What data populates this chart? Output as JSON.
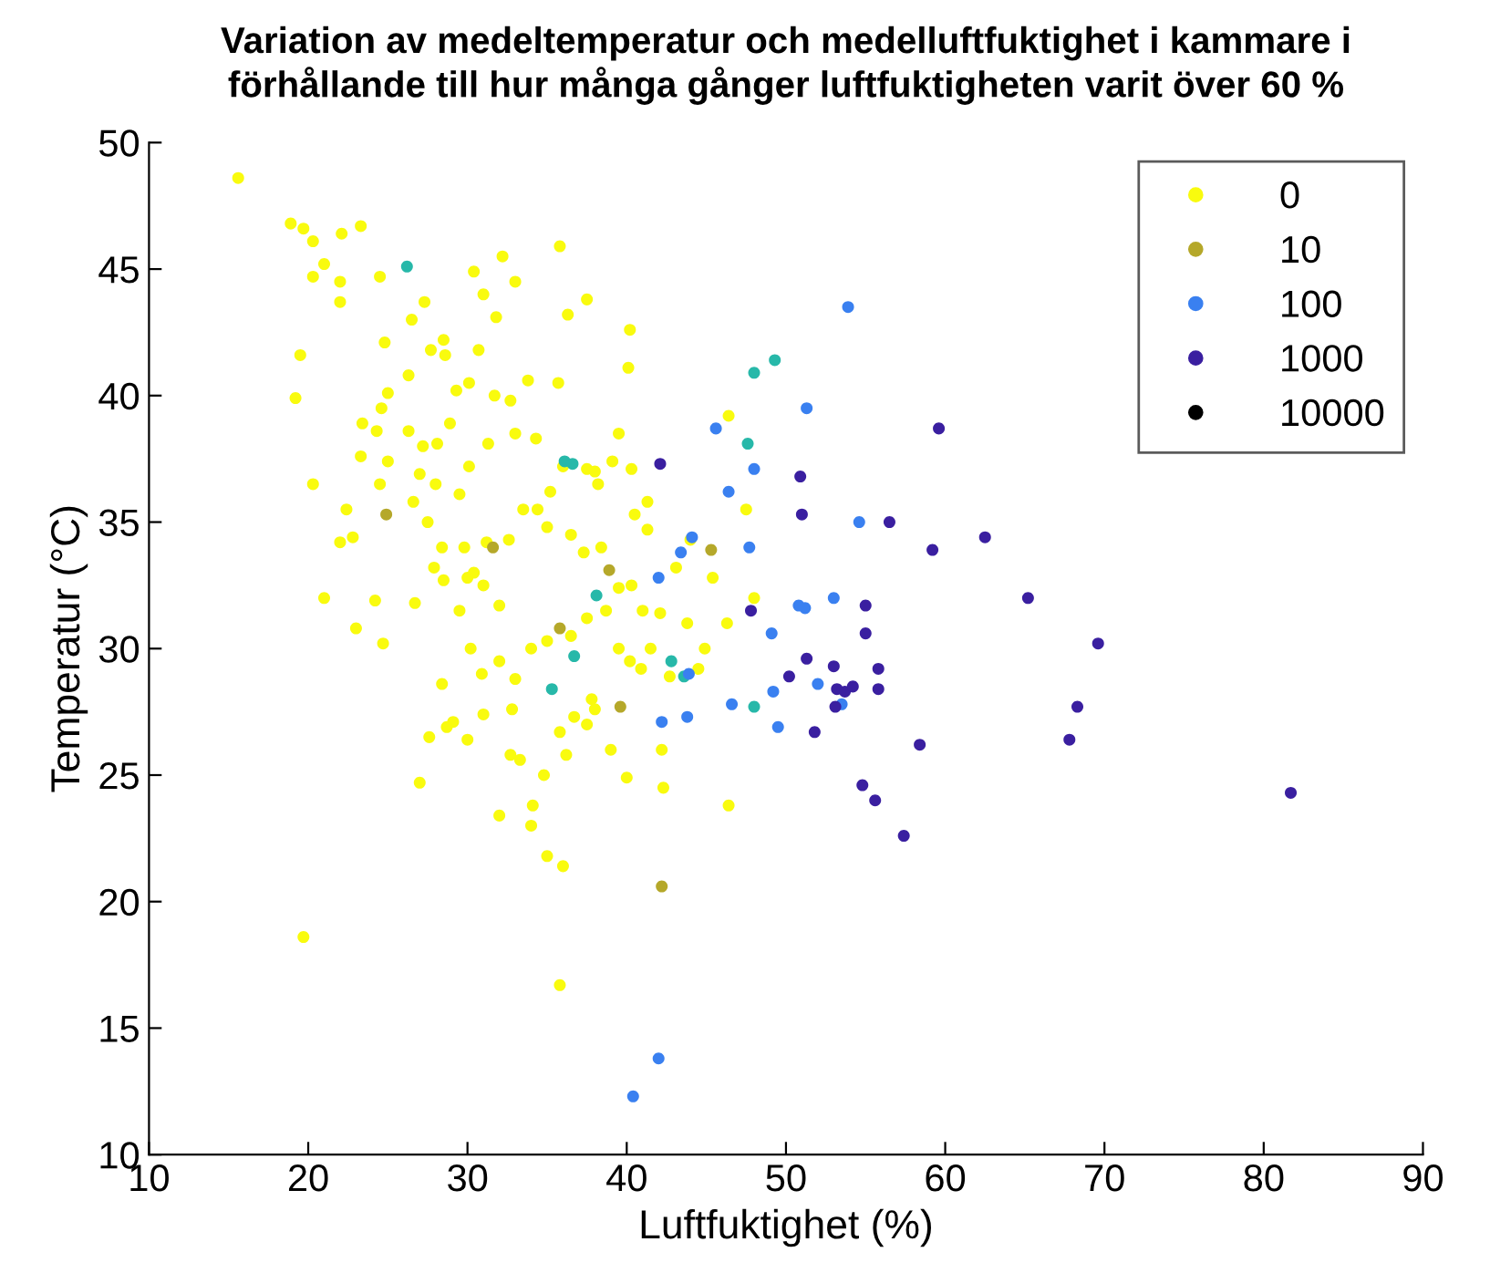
{
  "chart_data": {
    "type": "scatter",
    "title": "Variation av medeltemperatur och medelluftfuktighet i kammare i\nförhållande till hur många gånger luftfuktigheten varit över 60 %",
    "xlabel": "Luftfuktighet (%)",
    "ylabel": "Temperatur (°C)",
    "xlim": [
      10,
      90
    ],
    "ylim": [
      10,
      50
    ],
    "xticks": [
      10,
      20,
      30,
      40,
      50,
      60,
      70,
      80,
      90
    ],
    "yticks": [
      10,
      15,
      20,
      25,
      30,
      35,
      40,
      45,
      50
    ],
    "grid": false,
    "legend": "top right",
    "marker": "circle",
    "series": [
      {
        "name": "0",
        "color": "#f9fb0e",
        "x": [
          15.6,
          18.9,
          19.7,
          20.3,
          21.0,
          22.1,
          23.3,
          20.3,
          19.5,
          19.2,
          20.3,
          21.0,
          22.0,
          22.0,
          24.5,
          24.8,
          26.5,
          27.3,
          28.5,
          30.4,
          32.2,
          33.0,
          35.8,
          37.5,
          36.3,
          40.2,
          40.1,
          31.0,
          31.8,
          30.7,
          27.7,
          28.6,
          26.3,
          25.0,
          24.6,
          24.3,
          23.4,
          23.3,
          24.5,
          25.0,
          26.3,
          27.2,
          28.1,
          28.9,
          29.3,
          30.1,
          31.7,
          31.3,
          30.1,
          29.5,
          28.0,
          27.0,
          26.6,
          27.5,
          28.4,
          27.9,
          28.5,
          26.7,
          24.2,
          24.7,
          23.0,
          22.0,
          22.8,
          22.4,
          29.8,
          30.4,
          31.2,
          32.6,
          33.5,
          34.4,
          35.2,
          34.3,
          33.0,
          32.7,
          33.8,
          35.7,
          36.0,
          37.5,
          38.2,
          39.1,
          40.3,
          38.4,
          39.5,
          37.3,
          36.5,
          35.0,
          32.0,
          31.0,
          30.0,
          29.5,
          30.2,
          30.9,
          32.0,
          33.0,
          34.0,
          35.0,
          36.5,
          37.5,
          38.7,
          40.3,
          41.0,
          42.1,
          41.5,
          43.1,
          44.0,
          40.5,
          41.3,
          45.4,
          46.3,
          48.0,
          47.5,
          46.4,
          43.8,
          44.9,
          44.5,
          40.2,
          40.9,
          39.5,
          38.0,
          37.5,
          36.7,
          35.8,
          36.2,
          34.8,
          33.3,
          32.7,
          32.8,
          31.0,
          30.0,
          29.1,
          28.7,
          28.4,
          27.6,
          27.0,
          32.0,
          34.1,
          34.0,
          35.0,
          36.0,
          40.0,
          42.3,
          42.2,
          42.7,
          46.4,
          19.7,
          35.8,
          38.0,
          39.5,
          41.3,
          37.8,
          39.0
        ],
        "values": [
          48.6,
          46.8,
          46.6,
          46.1,
          45.2,
          46.4,
          46.7,
          44.7,
          41.6,
          39.9,
          36.5,
          32.0,
          44.5,
          43.7,
          44.7,
          42.1,
          43.0,
          43.7,
          42.2,
          44.9,
          45.5,
          44.5,
          45.9,
          43.8,
          43.2,
          42.6,
          41.1,
          44.0,
          43.1,
          41.8,
          41.8,
          41.6,
          40.8,
          40.1,
          39.5,
          38.6,
          38.9,
          37.6,
          36.5,
          37.4,
          38.6,
          38.0,
          38.1,
          38.9,
          40.2,
          40.5,
          40.0,
          38.1,
          37.2,
          36.1,
          36.5,
          36.9,
          35.8,
          35.0,
          34.0,
          33.2,
          32.7,
          31.8,
          31.9,
          30.2,
          30.8,
          34.2,
          34.4,
          35.5,
          34.0,
          33.0,
          34.2,
          34.3,
          35.5,
          35.5,
          36.2,
          38.3,
          38.5,
          39.8,
          40.6,
          40.5,
          37.2,
          37.1,
          36.5,
          37.4,
          37.1,
          34.0,
          32.4,
          33.8,
          34.5,
          34.8,
          31.7,
          32.5,
          32.8,
          31.5,
          30.0,
          29.0,
          29.5,
          28.8,
          30.0,
          30.3,
          30.5,
          31.2,
          31.5,
          32.5,
          31.5,
          31.4,
          30.0,
          33.2,
          34.3,
          35.3,
          35.8,
          32.8,
          31.0,
          32.0,
          35.5,
          39.2,
          31.0,
          30.0,
          29.2,
          29.5,
          29.2,
          30.0,
          27.6,
          27.0,
          27.3,
          26.7,
          25.8,
          25.0,
          25.6,
          25.8,
          27.6,
          27.4,
          26.4,
          27.1,
          26.9,
          28.6,
          26.5,
          24.7,
          23.4,
          23.8,
          23.0,
          21.8,
          21.4,
          24.9,
          24.5,
          26.0,
          28.9,
          23.8,
          18.6,
          16.7,
          37.0,
          38.5,
          34.7,
          28.0,
          26.0
        ]
      },
      {
        "name": "10",
        "color": "#b5a82a",
        "x": [
          24.9,
          31.6,
          38.9,
          35.8,
          39.6,
          42.2,
          45.3
        ],
        "values": [
          35.3,
          34.0,
          33.1,
          30.8,
          27.7,
          20.6,
          33.9
        ]
      },
      {
        "color": "#27b8a9",
        "x": [
          26.2,
          36.1,
          36.6,
          36.7,
          38.1,
          42.8,
          43.6,
          48.0,
          49.3,
          47.6,
          48.0,
          35.3
        ],
        "values": [
          45.1,
          37.4,
          37.3,
          29.7,
          32.1,
          29.5,
          28.9,
          40.9,
          41.4,
          38.1,
          27.7,
          28.4
        ]
      },
      {
        "name": "100",
        "color": "#3a80f0",
        "x": [
          53.9,
          51.3,
          46.4,
          48.0,
          45.6,
          47.7,
          51.2,
          53.0,
          54.6,
          44.1,
          43.4,
          42.0,
          42.2,
          43.8,
          46.6,
          49.2,
          49.5,
          50.8,
          52.0,
          53.5,
          43.9,
          49.1,
          42.0,
          40.4
        ],
        "values": [
          43.5,
          39.5,
          36.2,
          37.1,
          38.7,
          34.0,
          31.6,
          32.0,
          35.0,
          34.4,
          33.8,
          32.8,
          27.1,
          27.3,
          27.8,
          28.3,
          26.9,
          31.7,
          28.6,
          27.8,
          29.0,
          30.6,
          13.8,
          12.3
        ]
      },
      {
        "name": "1000",
        "color": "#3a1fa0",
        "x": [
          42.1,
          50.9,
          51.0,
          59.6,
          56.5,
          59.2,
          62.5,
          65.2,
          69.6,
          47.8,
          50.2,
          51.3,
          53.0,
          53.2,
          53.7,
          53.1,
          54.2,
          55.0,
          55.0,
          55.8,
          55.8,
          51.8,
          58.4,
          67.8,
          68.3,
          81.7,
          54.8,
          55.6,
          57.4
        ],
        "values": [
          37.3,
          36.8,
          35.3,
          38.7,
          35.0,
          33.9,
          34.4,
          32.0,
          30.2,
          31.5,
          28.9,
          29.6,
          29.3,
          28.4,
          28.3,
          27.7,
          28.5,
          31.7,
          30.6,
          29.2,
          28.4,
          26.7,
          26.2,
          26.4,
          27.7,
          24.3,
          24.6,
          24.0,
          22.6
        ]
      },
      {
        "name": "10000",
        "color": "#000000"
      }
    ]
  }
}
